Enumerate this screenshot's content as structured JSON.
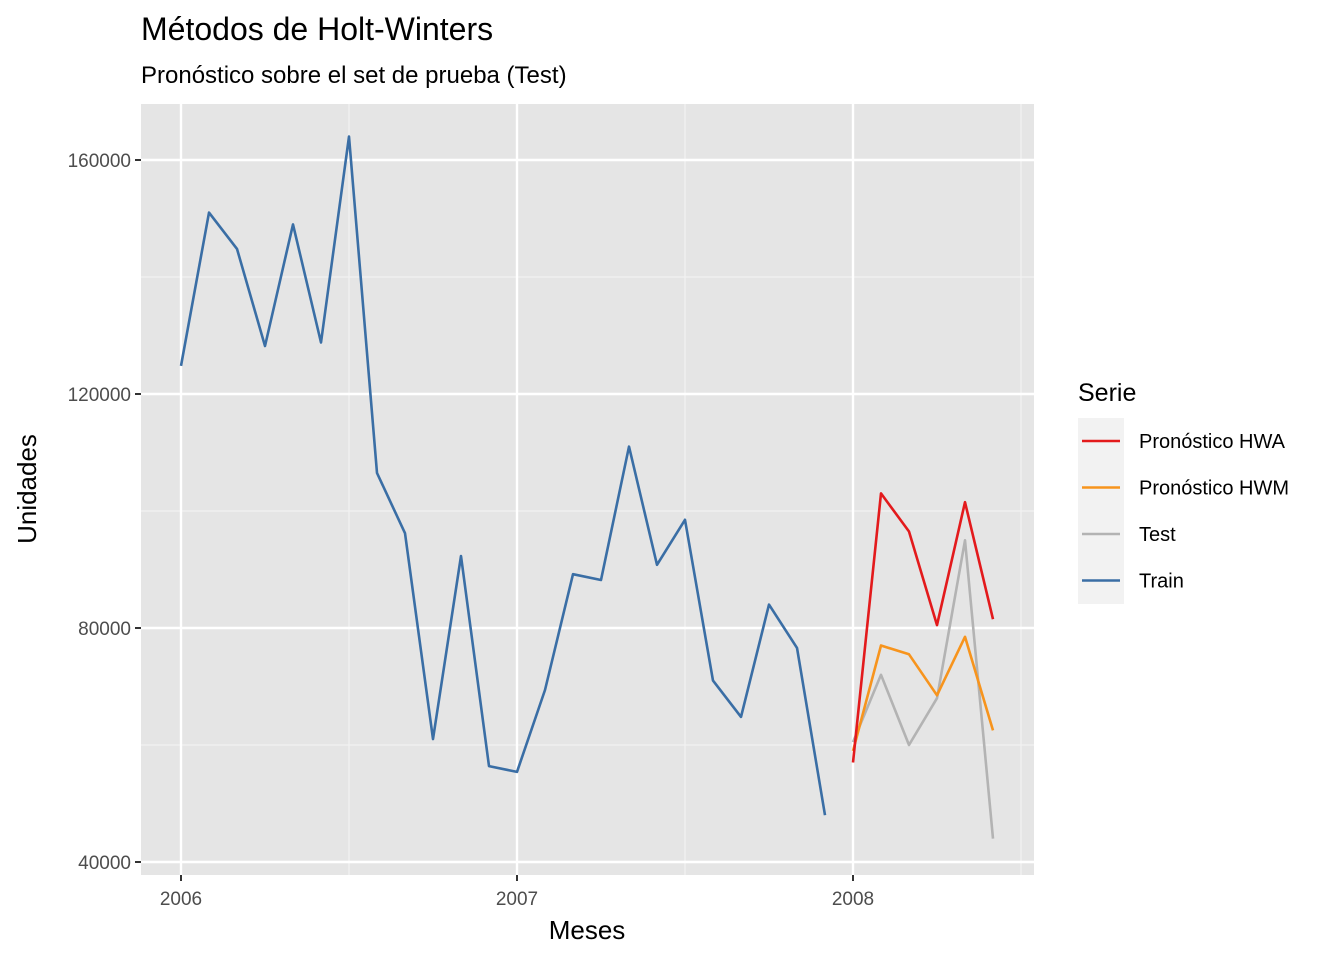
{
  "chart_data": {
    "type": "line",
    "title": "Métodos de Holt-Winters",
    "subtitle": "Pronóstico sobre el set de prueba (Test)",
    "xlabel": "Meses",
    "ylabel": "Unidades",
    "x_ticks": [
      "2006",
      "2007",
      "2008"
    ],
    "y_ticks": [
      40000,
      80000,
      120000,
      160000
    ],
    "xlim": [
      2005.925,
      2008.5
    ],
    "ylim": [
      38000,
      170000
    ],
    "grid": true,
    "legend_title": "Serie",
    "legend_position": "right",
    "series": [
      {
        "name": "Pronóstico HWA",
        "color": "#e31a1c",
        "x": [
          2008.0,
          2008.0833,
          2008.1667,
          2008.25,
          2008.3333,
          2008.4167
        ],
        "values": [
          57000,
          103000,
          96500,
          80500,
          101500,
          81500
        ]
      },
      {
        "name": "Pronóstico HWM",
        "color": "#f7941d",
        "x": [
          2008.0,
          2008.0833,
          2008.1667,
          2008.25,
          2008.3333,
          2008.4167
        ],
        "values": [
          59000,
          77000,
          75500,
          68500,
          78500,
          62500
        ]
      },
      {
        "name": "Test",
        "color": "#b3b3b3",
        "x": [
          2008.0,
          2008.0833,
          2008.1667,
          2008.25,
          2008.3333,
          2008.4167
        ],
        "values": [
          60500,
          72000,
          60000,
          68000,
          95000,
          44000
        ]
      },
      {
        "name": "Train",
        "color": "#3a6ea5",
        "x": [
          2006.0,
          2006.0833,
          2006.1667,
          2006.25,
          2006.3333,
          2006.4167,
          2006.5,
          2006.5833,
          2006.6667,
          2006.75,
          2006.8333,
          2006.9167,
          2007.0,
          2007.0833,
          2007.1667,
          2007.25,
          2007.3333,
          2007.4167,
          2007.5,
          2007.5833,
          2007.6667,
          2007.75,
          2007.8333,
          2007.9167
        ],
        "values": [
          124800,
          151000,
          144800,
          128200,
          149000,
          128800,
          164000,
          106500,
          96200,
          61000,
          92300,
          56400,
          55400,
          69400,
          89200,
          88200,
          111000,
          90800,
          98500,
          71000,
          64800,
          84000,
          76600,
          48000
        ]
      }
    ]
  }
}
